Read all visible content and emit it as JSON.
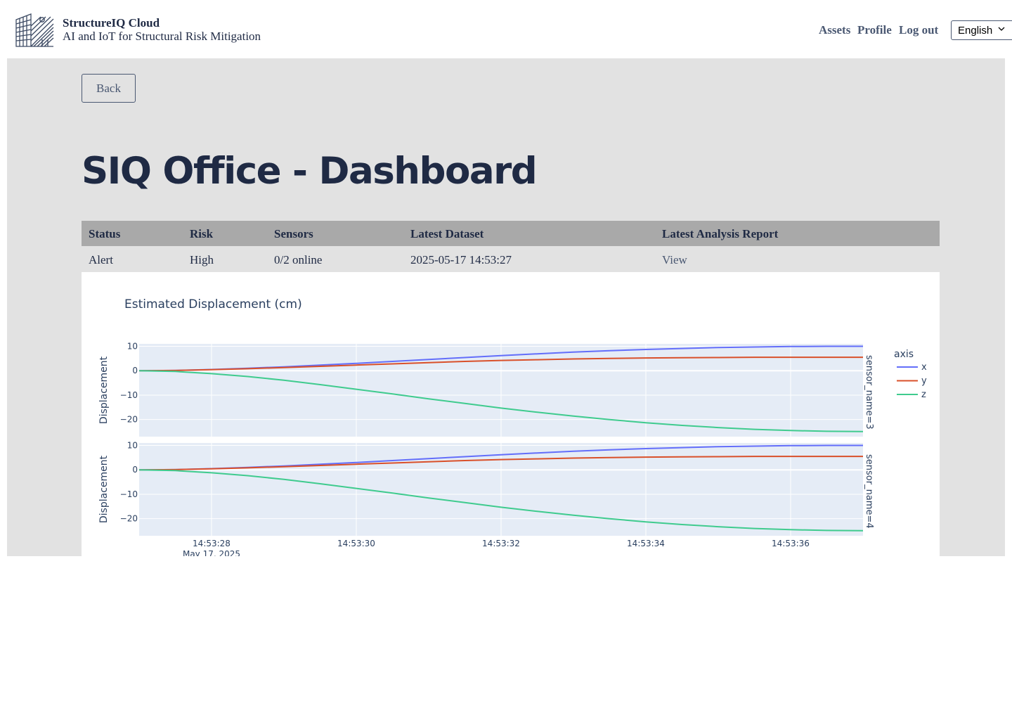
{
  "header": {
    "brand_name": "StructureIQ Cloud",
    "tagline": "AI and IoT for Structural Risk Mitigation",
    "nav": [
      "Assets",
      "Profile",
      "Log out"
    ],
    "language": "English"
  },
  "page": {
    "back_label": "Back",
    "title": "SIQ Office - Dashboard"
  },
  "summary_table": {
    "headers": [
      "Status",
      "Risk",
      "Sensors",
      "Latest Dataset",
      "Latest Analysis Report"
    ],
    "row": [
      "Alert",
      "High",
      "0/2 online",
      "2025-05-17 14:53:27",
      "View"
    ]
  },
  "colors": {
    "x": "#636efa",
    "y": "#d9502a",
    "z": "#3fcb8e",
    "plot_bg": "#e5ecf6"
  },
  "chart_data": {
    "type": "line",
    "title": "Estimated Displacement (cm)",
    "ylabel": "Displacement",
    "xlabel": "",
    "x_date_label": "May 17, 2025",
    "x_ticks": [
      "14:53:28",
      "14:53:30",
      "14:53:32",
      "14:53:34",
      "14:53:36"
    ],
    "x_tick_values": [
      28,
      30,
      32,
      34,
      36
    ],
    "xlim": [
      27,
      37
    ],
    "ylim": [
      -27,
      11
    ],
    "y_ticks": [
      10,
      0,
      -10,
      -20
    ],
    "y_tick_labels": [
      "10",
      "0",
      "−10",
      "−20"
    ],
    "legend_title": "axis",
    "legend_position": "right",
    "grid": true,
    "x_seconds": [
      27,
      27.5,
      28,
      28.5,
      29,
      29.5,
      30,
      30.5,
      31,
      31.5,
      32,
      32.5,
      33,
      33.5,
      34,
      34.5,
      35,
      35.5,
      36,
      36.5,
      37
    ],
    "panels": [
      {
        "facet": "sensor_name=3",
        "series": [
          {
            "name": "x",
            "values": [
              0,
              0.1,
              0.5,
              1.0,
              1.6,
              2.3,
              3.0,
              3.8,
              4.6,
              5.4,
              6.2,
              6.9,
              7.6,
              8.2,
              8.7,
              9.1,
              9.5,
              9.7,
              9.9,
              10.0,
              10.0
            ]
          },
          {
            "name": "y",
            "values": [
              0,
              0.1,
              0.4,
              0.8,
              1.3,
              1.8,
              2.3,
              2.8,
              3.3,
              3.8,
              4.2,
              4.5,
              4.8,
              5.0,
              5.2,
              5.3,
              5.4,
              5.5,
              5.5,
              5.5,
              5.5
            ]
          },
          {
            "name": "z",
            "values": [
              0,
              -0.3,
              -1.2,
              -2.4,
              -3.9,
              -5.7,
              -7.6,
              -9.5,
              -11.5,
              -13.4,
              -15.3,
              -17.0,
              -18.6,
              -20.0,
              -21.3,
              -22.4,
              -23.3,
              -24.0,
              -24.5,
              -24.8,
              -24.9
            ]
          }
        ]
      },
      {
        "facet": "sensor_name=4",
        "series": [
          {
            "name": "x",
            "values": [
              0,
              0.1,
              0.5,
              1.0,
              1.6,
              2.3,
              3.0,
              3.8,
              4.6,
              5.4,
              6.2,
              6.9,
              7.6,
              8.2,
              8.7,
              9.1,
              9.5,
              9.7,
              9.9,
              10.0,
              10.0
            ]
          },
          {
            "name": "y",
            "values": [
              0,
              0.1,
              0.4,
              0.8,
              1.3,
              1.8,
              2.3,
              2.8,
              3.3,
              3.8,
              4.2,
              4.5,
              4.8,
              5.0,
              5.2,
              5.3,
              5.4,
              5.5,
              5.5,
              5.5,
              5.5
            ]
          },
          {
            "name": "z",
            "values": [
              0,
              -0.3,
              -1.2,
              -2.4,
              -3.9,
              -5.7,
              -7.6,
              -9.5,
              -11.5,
              -13.4,
              -15.3,
              -17.0,
              -18.6,
              -20.0,
              -21.3,
              -22.4,
              -23.3,
              -24.0,
              -24.5,
              -24.8,
              -24.9
            ]
          }
        ]
      }
    ]
  }
}
